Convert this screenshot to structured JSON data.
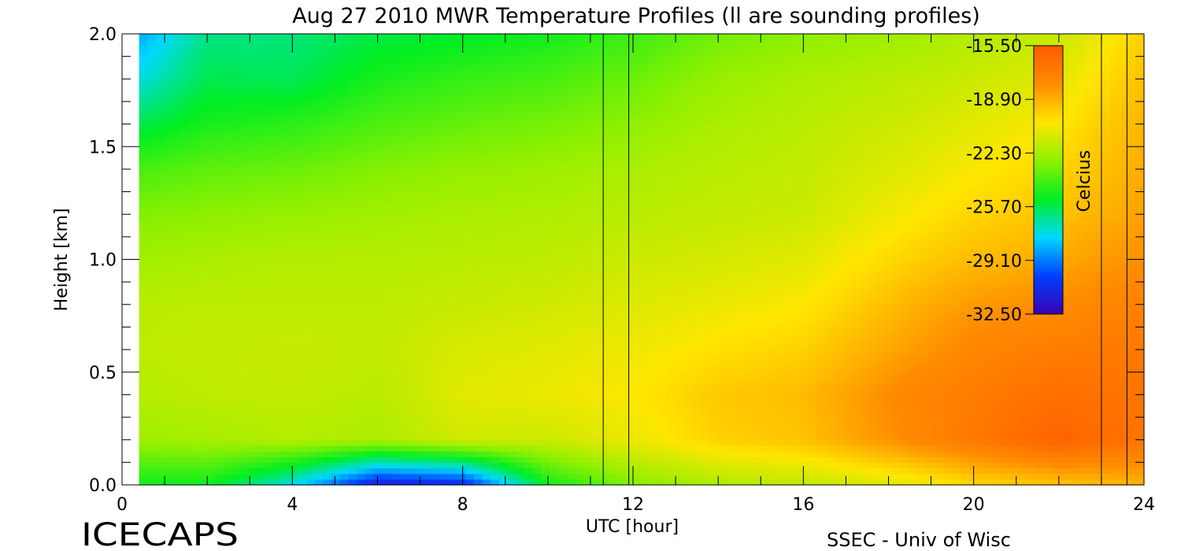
{
  "chart_data": {
    "type": "heatmap",
    "title": "Aug 27 2010 MWR Temperature Profiles (ll are sounding profiles)",
    "xlabel": "UTC [hour]",
    "ylabel": "Height [km]",
    "xlim": [
      0,
      24
    ],
    "ylim": [
      0,
      2.0
    ],
    "data_xlim": [
      0.4,
      24
    ],
    "x_ticks": [
      "0",
      "4",
      "8",
      "12",
      "16",
      "20",
      "24"
    ],
    "y_ticks": [
      "0.0",
      "0.5",
      "1.0",
      "1.5",
      "2.0"
    ],
    "colorbar": {
      "label": "Celcius",
      "range": [
        -32.5,
        -15.5
      ],
      "tick_labels": [
        "-15.50",
        "-18.90",
        "-22.30",
        "-25.70",
        "-29.10",
        "-32.50"
      ],
      "colors": [
        "#3a00b4",
        "#0040ff",
        "#00d8ff",
        "#00ee22",
        "#90f000",
        "#ffe600",
        "#ff8c00",
        "#ff5a00"
      ]
    },
    "sounding_profile_hours": [
      11.3,
      11.9,
      23.0,
      23.6
    ],
    "profiles": [
      {
        "x": 0.4,
        "t": [
          -25.0,
          -22.5,
          -22.0,
          -21.8,
          -21.9,
          -22.4,
          -23.0,
          -24.0,
          -25.7,
          -27.3,
          -28.4
        ]
      },
      {
        "x": 2.0,
        "t": [
          -25.0,
          -22.3,
          -21.8,
          -21.7,
          -21.8,
          -22.2,
          -22.8,
          -23.6,
          -24.8,
          -25.7,
          -26.3
        ]
      },
      {
        "x": 4.0,
        "t": [
          -27.5,
          -22.0,
          -21.7,
          -21.6,
          -21.8,
          -22.0,
          -22.6,
          -23.4,
          -24.5,
          -25.8,
          -26.2
        ]
      },
      {
        "x": 6.0,
        "t": [
          -31.5,
          -22.2,
          -21.9,
          -21.7,
          -21.8,
          -22.0,
          -22.4,
          -23.0,
          -23.9,
          -24.8,
          -25.6
        ]
      },
      {
        "x": 8.0,
        "t": [
          -31.0,
          -21.4,
          -21.0,
          -21.2,
          -21.6,
          -21.9,
          -22.2,
          -22.7,
          -23.5,
          -24.3,
          -25.3
        ]
      },
      {
        "x": 10.0,
        "t": [
          -25.0,
          -21.5,
          -20.8,
          -21.0,
          -21.4,
          -21.8,
          -22.1,
          -22.5,
          -23.2,
          -24.0,
          -24.9
        ]
      },
      {
        "x": 12.0,
        "t": [
          -23.0,
          -20.8,
          -20.4,
          -20.7,
          -21.1,
          -21.5,
          -21.9,
          -22.2,
          -22.8,
          -23.4,
          -24.2
        ]
      },
      {
        "x": 14.0,
        "t": [
          -22.2,
          -19.8,
          -19.6,
          -20.2,
          -20.8,
          -21.3,
          -21.7,
          -21.9,
          -22.2,
          -22.6,
          -23.3
        ]
      },
      {
        "x": 16.0,
        "t": [
          -21.8,
          -19.4,
          -19.2,
          -19.8,
          -20.4,
          -21.0,
          -21.5,
          -21.7,
          -21.9,
          -22.2,
          -22.8
        ]
      },
      {
        "x": 18.5,
        "t": [
          -21.0,
          -17.8,
          -17.6,
          -18.4,
          -19.0,
          -19.8,
          -20.5,
          -21.0,
          -21.4,
          -21.8,
          -22.4
        ]
      },
      {
        "x": 20.0,
        "t": [
          -20.0,
          -17.0,
          -17.2,
          -17.6,
          -18.3,
          -19.2,
          -19.9,
          -20.5,
          -21.0,
          -21.5,
          -22.0
        ]
      },
      {
        "x": 22.0,
        "t": [
          -19.5,
          -15.9,
          -16.5,
          -17.2,
          -17.9,
          -18.7,
          -19.4,
          -19.9,
          -20.4,
          -21.0,
          -21.6
        ]
      },
      {
        "x": 24.0,
        "t": [
          -19.0,
          -16.8,
          -16.8,
          -17.0,
          -17.4,
          -18.0,
          -18.5,
          -18.8,
          -19.0,
          -19.3,
          -19.8
        ]
      }
    ],
    "profile_heights_km": [
      0.0,
      0.2,
      0.4,
      0.6,
      0.8,
      1.0,
      1.2,
      1.4,
      1.6,
      1.8,
      2.0
    ]
  },
  "branding": {
    "logo_text": "ICECAPS",
    "credit": "SSEC - Univ of Wisc"
  }
}
